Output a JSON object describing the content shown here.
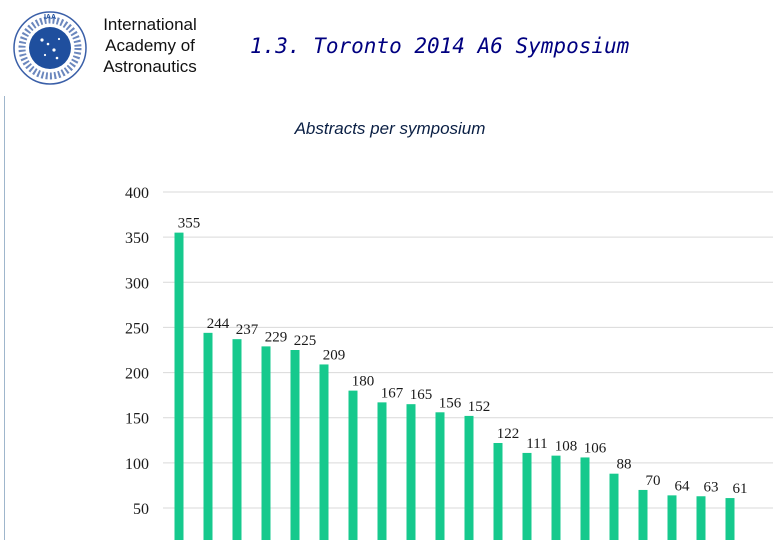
{
  "header": {
    "org_lines": [
      "International",
      "Academy of",
      "Astronautics"
    ],
    "logo_text": "IAA",
    "slide_title": "1.3. Toronto 2014 A6 Symposium"
  },
  "colors": {
    "bar": "#16c98d",
    "title_blue": "#000080",
    "grid": "#d9d9d9"
  },
  "chart_data": {
    "type": "bar",
    "title": "Abstracts per symposium",
    "categories": [
      "",
      "",
      "",
      "",
      "",
      "",
      "",
      "",
      "",
      "",
      "",
      "",
      "",
      "",
      "",
      "",
      "",
      "",
      "",
      ""
    ],
    "values": [
      355,
      244,
      237,
      229,
      225,
      209,
      180,
      167,
      165,
      156,
      152,
      122,
      111,
      108,
      106,
      88,
      70,
      64,
      63,
      61
    ],
    "ylim": [
      50,
      400
    ],
    "yticks": [
      50,
      100,
      150,
      200,
      250,
      300,
      350,
      400
    ],
    "xlabel": "",
    "ylabel": "",
    "grid": true,
    "data_labels": true
  }
}
